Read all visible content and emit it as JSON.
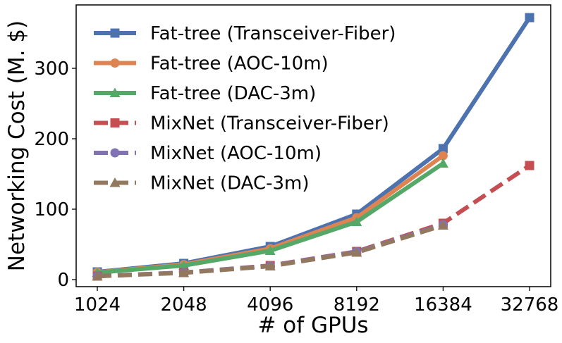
{
  "chart_data": {
    "type": "line",
    "xlabel": "# of GPUs",
    "ylabel": "Networking Cost (M. $)",
    "x_scale": "log2",
    "x": [
      1024,
      2048,
      4096,
      8192,
      16384,
      32768
    ],
    "x_tick_labels": [
      "1024",
      "2048",
      "4096",
      "8192",
      "16384",
      "32768"
    ],
    "ylim": [
      -10,
      390
    ],
    "y_ticks": [
      0,
      100,
      200,
      300
    ],
    "y_tick_labels": [
      "0",
      "100",
      "200",
      "300"
    ],
    "grid": false,
    "legend_position": "top-left",
    "series": [
      {
        "name": "Fat-tree (Transceiver-Fiber)",
        "color": "#4c72b0",
        "linestyle": "solid",
        "marker": "square",
        "x": [
          1024,
          2048,
          4096,
          8192,
          16384,
          32768
        ],
        "values": [
          11,
          23,
          47,
          93,
          186,
          372
        ]
      },
      {
        "name": "Fat-tree (AOC-10m)",
        "color": "#dd8452",
        "linestyle": "solid",
        "marker": "circle",
        "x": [
          1024,
          2048,
          4096,
          8192,
          16384
        ],
        "values": [
          10.5,
          21.5,
          44,
          88,
          176
        ]
      },
      {
        "name": "Fat-tree (DAC-3m)",
        "color": "#55a868",
        "linestyle": "solid",
        "marker": "triangle",
        "x": [
          1024,
          2048,
          4096,
          8192,
          16384
        ],
        "values": [
          10,
          20,
          41,
          82,
          165
        ]
      },
      {
        "name": "MixNet (Transceiver-Fiber)",
        "color": "#c44e52",
        "linestyle": "dashed",
        "marker": "square",
        "x": [
          1024,
          2048,
          4096,
          8192,
          16384,
          32768
        ],
        "values": [
          5,
          10,
          20,
          40,
          80,
          162
        ]
      },
      {
        "name": "MixNet (AOC-10m)",
        "color": "#8172b3",
        "linestyle": "dashed",
        "marker": "circle",
        "x": [
          1024,
          2048,
          4096,
          8192,
          16384
        ],
        "values": [
          5,
          10,
          19.5,
          39.5,
          78
        ]
      },
      {
        "name": "MixNet (DAC-3m)",
        "color": "#937860",
        "linestyle": "dashed",
        "marker": "triangle",
        "x": [
          1024,
          2048,
          4096,
          8192,
          16384
        ],
        "values": [
          4.8,
          9.6,
          19,
          38.5,
          77
        ]
      }
    ]
  }
}
